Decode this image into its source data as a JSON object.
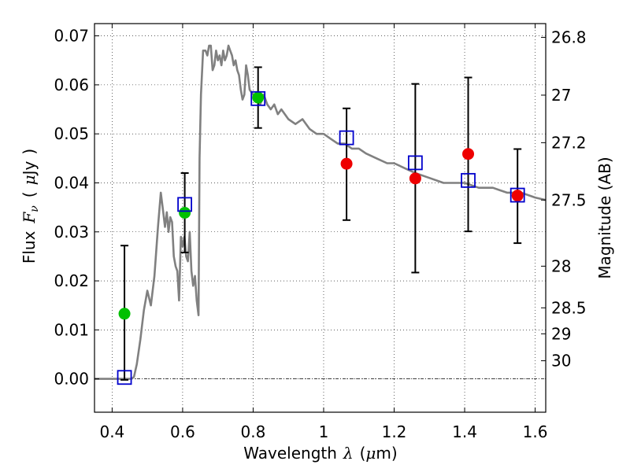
{
  "chart_data": {
    "type": "scatter",
    "xlabel": "Wavelength",
    "xlabel_symbol": "λ",
    "xlabel_unit_open": "(",
    "xlabel_unit_mu": "μ",
    "xlabel_unit_rest": "m)",
    "ylabel_word": "Flux",
    "ylabel_symbol": "F",
    "ylabel_subscript": "ν",
    "ylabel_unit_open": "(",
    "ylabel_unit_mu": "μ",
    "ylabel_unit_rest": "Jy",
    "ylabel_unit_close": ")",
    "y2label": "Magnitude (AB)",
    "xlim": [
      0.35,
      1.63
    ],
    "ylim": [
      -0.0068,
      0.0725
    ],
    "xticks": [
      0.4,
      0.6,
      0.8,
      1.0,
      1.2,
      1.4,
      1.6
    ],
    "xtick_labels": [
      "0.4",
      "0.6",
      "0.8",
      "1",
      "1.2",
      "1.4",
      "1.6"
    ],
    "yticks": [
      0.0,
      0.01,
      0.02,
      0.03,
      0.04,
      0.05,
      0.06,
      0.07
    ],
    "ytick_labels": [
      "0.00",
      "0.01",
      "0.02",
      "0.03",
      "0.04",
      "0.05",
      "0.06",
      "0.07"
    ],
    "magnitude_ticks": [
      {
        "flux": 0.0697,
        "label": "26.8"
      },
      {
        "flux": 0.0579,
        "label": "27"
      },
      {
        "flux": 0.0482,
        "label": "27.2"
      },
      {
        "flux": 0.0365,
        "label": "27.5"
      },
      {
        "flux": 0.023,
        "label": "28"
      },
      {
        "flux": 0.0145,
        "label": "28.5"
      },
      {
        "flux": 0.0092,
        "label": "29"
      },
      {
        "flux": 0.0037,
        "label": "30"
      }
    ],
    "grid": true,
    "colors": {
      "model_line": "#808080",
      "observed_green": "#00c000",
      "observed_red": "#ee0000",
      "model_bands": "#0000cc",
      "errorbar": "#000000"
    },
    "series": [
      {
        "name": "model spectrum",
        "kind": "line",
        "x": [
          0.35,
          0.455,
          0.462,
          0.47,
          0.48,
          0.49,
          0.5,
          0.51,
          0.52,
          0.53,
          0.538,
          0.545,
          0.55,
          0.555,
          0.56,
          0.565,
          0.57,
          0.575,
          0.58,
          0.585,
          0.59,
          0.595,
          0.6,
          0.605,
          0.61,
          0.615,
          0.62,
          0.625,
          0.63,
          0.635,
          0.64,
          0.645,
          0.648,
          0.652,
          0.658,
          0.665,
          0.67,
          0.675,
          0.68,
          0.685,
          0.69,
          0.695,
          0.7,
          0.705,
          0.71,
          0.715,
          0.72,
          0.725,
          0.73,
          0.735,
          0.74,
          0.745,
          0.75,
          0.755,
          0.76,
          0.765,
          0.77,
          0.775,
          0.78,
          0.785,
          0.79,
          0.8,
          0.81,
          0.82,
          0.83,
          0.84,
          0.85,
          0.86,
          0.87,
          0.88,
          0.9,
          0.92,
          0.94,
          0.96,
          0.98,
          1.0,
          1.02,
          1.04,
          1.06,
          1.08,
          1.1,
          1.12,
          1.15,
          1.18,
          1.2,
          1.23,
          1.26,
          1.3,
          1.34,
          1.38,
          1.4,
          1.44,
          1.48,
          1.52,
          1.56,
          1.6,
          1.63
        ],
        "y": [
          0.0,
          0.0,
          0.0004,
          0.003,
          0.008,
          0.014,
          0.018,
          0.015,
          0.021,
          0.031,
          0.038,
          0.034,
          0.031,
          0.034,
          0.03,
          0.033,
          0.032,
          0.025,
          0.023,
          0.022,
          0.016,
          0.029,
          0.027,
          0.029,
          0.025,
          0.024,
          0.03,
          0.022,
          0.019,
          0.021,
          0.016,
          0.013,
          0.045,
          0.058,
          0.067,
          0.067,
          0.066,
          0.068,
          0.068,
          0.063,
          0.064,
          0.067,
          0.065,
          0.066,
          0.064,
          0.067,
          0.065,
          0.066,
          0.068,
          0.067,
          0.066,
          0.064,
          0.065,
          0.063,
          0.062,
          0.059,
          0.057,
          0.058,
          0.064,
          0.062,
          0.059,
          0.058,
          0.057,
          0.056,
          0.058,
          0.056,
          0.055,
          0.056,
          0.054,
          0.055,
          0.053,
          0.052,
          0.053,
          0.051,
          0.05,
          0.05,
          0.049,
          0.048,
          0.048,
          0.047,
          0.047,
          0.046,
          0.045,
          0.044,
          0.044,
          0.043,
          0.042,
          0.041,
          0.04,
          0.04,
          0.04,
          0.039,
          0.039,
          0.038,
          0.038,
          0.037,
          0.0365
        ]
      },
      {
        "name": "observed (green)",
        "kind": "points",
        "x": [
          0.435,
          0.606,
          0.814
        ],
        "y": [
          0.0133,
          0.0339,
          0.0574
        ]
      },
      {
        "name": "observed (red)",
        "kind": "points",
        "x": [
          1.065,
          1.26,
          1.41,
          1.55
        ],
        "y": [
          0.0439,
          0.0409,
          0.0459,
          0.0374
        ]
      },
      {
        "name": "error bars",
        "kind": "errorbar",
        "x": [
          0.435,
          0.606,
          0.814,
          1.065,
          1.26,
          1.41,
          1.55
        ],
        "low": [
          -0.0002,
          0.0258,
          0.0512,
          0.0324,
          0.0217,
          0.0301,
          0.0277
        ],
        "high": [
          0.0272,
          0.042,
          0.0636,
          0.0552,
          0.0602,
          0.0615,
          0.0469
        ]
      },
      {
        "name": "model band fluxes",
        "kind": "squares",
        "x": [
          0.435,
          0.606,
          0.814,
          1.065,
          1.26,
          1.41,
          1.55
        ],
        "y": [
          0.0003,
          0.0356,
          0.0572,
          0.0492,
          0.0441,
          0.0405,
          0.0375
        ]
      }
    ]
  }
}
